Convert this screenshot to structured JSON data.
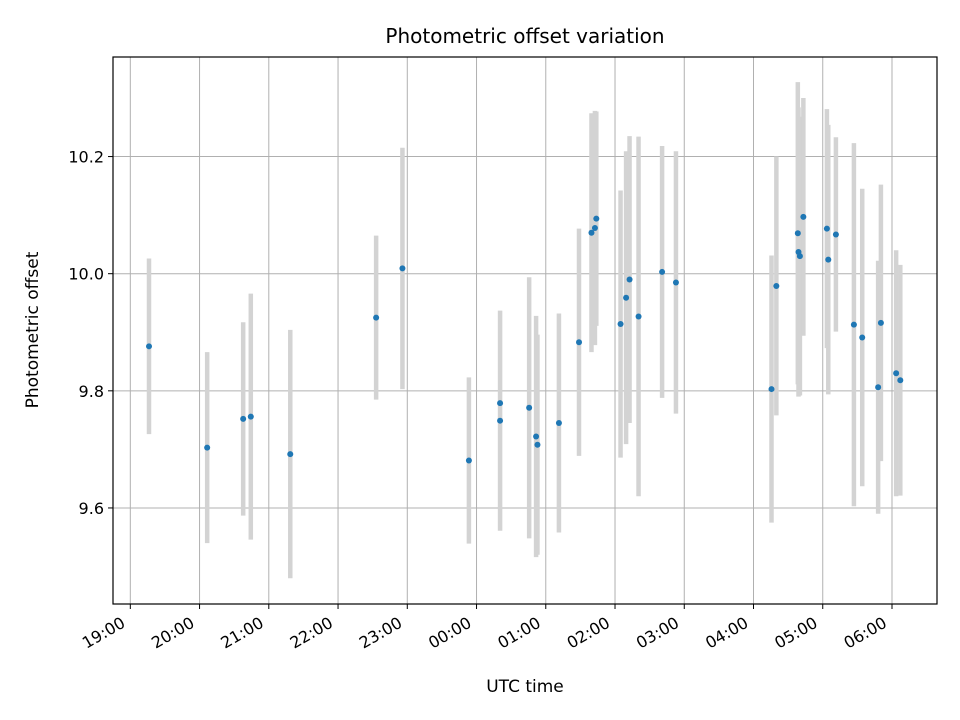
{
  "chart_data": {
    "type": "scatter",
    "title": "Photometric offset variation",
    "xlabel": "UTC time",
    "ylabel": "Photometric offset",
    "grid": true,
    "x_tick_labels": [
      "19:00",
      "20:00",
      "21:00",
      "22:00",
      "23:00",
      "00:00",
      "01:00",
      "02:00",
      "03:00",
      "04:00",
      "05:00",
      "06:00"
    ],
    "x_tick_hours": [
      0,
      1,
      2,
      3,
      4,
      5,
      6,
      7,
      8,
      9,
      10,
      11
    ],
    "x_range_hours_since_1900": [
      -0.25,
      11.65
    ],
    "y_ticks": [
      9.6,
      9.8,
      10.0,
      10.2
    ],
    "y_tick_labels": [
      "9.6",
      "9.8",
      "10.0",
      "10.2"
    ],
    "ylim": [
      9.436,
      10.37
    ],
    "colors": {
      "point": "#1f77b4",
      "errorbar": "#d3d3d3",
      "grid": "#b0b0b0"
    },
    "points": [
      {
        "t": 0.27,
        "y": 9.876,
        "err": 0.15
      },
      {
        "t": 1.11,
        "y": 9.703,
        "err": 0.163
      },
      {
        "t": 1.63,
        "y": 9.752,
        "err": 0.165
      },
      {
        "t": 1.74,
        "y": 9.756,
        "err": 0.21
      },
      {
        "t": 2.31,
        "y": 9.692,
        "err": 0.212
      },
      {
        "t": 3.55,
        "y": 9.925,
        "err": 0.14
      },
      {
        "t": 3.93,
        "y": 10.009,
        "err": 0.206
      },
      {
        "t": 4.89,
        "y": 9.681,
        "err": 0.142
      },
      {
        "t": 5.34,
        "y": 9.749,
        "err": 0.188
      },
      {
        "t": 5.34,
        "y": 9.779,
        "err": 0.0
      },
      {
        "t": 5.76,
        "y": 9.771,
        "err": 0.223
      },
      {
        "t": 5.86,
        "y": 9.722,
        "err": 0.206
      },
      {
        "t": 5.88,
        "y": 9.708,
        "err": 0.188
      },
      {
        "t": 6.19,
        "y": 9.745,
        "err": 0.187
      },
      {
        "t": 6.48,
        "y": 9.883,
        "err": 0.194
      },
      {
        "t": 6.66,
        "y": 10.07,
        "err": 0.204
      },
      {
        "t": 6.71,
        "y": 10.078,
        "err": 0.2
      },
      {
        "t": 6.73,
        "y": 10.094,
        "err": 0.183
      },
      {
        "t": 7.08,
        "y": 9.914,
        "err": 0.228
      },
      {
        "t": 7.16,
        "y": 9.959,
        "err": 0.25
      },
      {
        "t": 7.21,
        "y": 9.99,
        "err": 0.245
      },
      {
        "t": 7.34,
        "y": 9.927,
        "err": 0.307
      },
      {
        "t": 7.68,
        "y": 10.003,
        "err": 0.215
      },
      {
        "t": 7.88,
        "y": 9.985,
        "err": 0.224
      },
      {
        "t": 9.26,
        "y": 9.803,
        "err": 0.228
      },
      {
        "t": 9.33,
        "y": 9.979,
        "err": 0.221
      },
      {
        "t": 9.64,
        "y": 10.069,
        "err": 0.258
      },
      {
        "t": 9.65,
        "y": 10.037,
        "err": 0.247
      },
      {
        "t": 9.67,
        "y": 10.03,
        "err": 0.238
      },
      {
        "t": 9.72,
        "y": 10.097,
        "err": 0.203
      },
      {
        "t": 10.06,
        "y": 10.077,
        "err": 0.204
      },
      {
        "t": 10.08,
        "y": 10.024,
        "err": 0.23
      },
      {
        "t": 10.19,
        "y": 10.067,
        "err": 0.166
      },
      {
        "t": 10.45,
        "y": 9.913,
        "err": 0.31
      },
      {
        "t": 10.57,
        "y": 9.891,
        "err": 0.254
      },
      {
        "t": 10.8,
        "y": 9.806,
        "err": 0.216
      },
      {
        "t": 10.84,
        "y": 9.916,
        "err": 0.236
      },
      {
        "t": 11.06,
        "y": 9.83,
        "err": 0.21
      },
      {
        "t": 11.12,
        "y": 9.818,
        "err": 0.197
      }
    ]
  }
}
